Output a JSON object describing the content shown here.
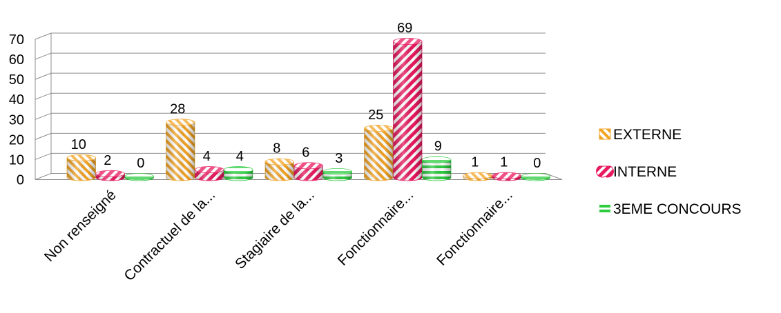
{
  "chart_data": {
    "type": "bar",
    "categories": [
      "Non renseigné",
      "Contractuel de la...",
      "Stagiaire de la...",
      "Fonctionnaire...",
      "Fonctionnaire..."
    ],
    "series": [
      {
        "name": "EXTERNE",
        "values": [
          10,
          28,
          8,
          25,
          1
        ],
        "color": "#f2a324",
        "pattern": "diagonal-stripes-up"
      },
      {
        "name": "INTERNE",
        "values": [
          2,
          4,
          6,
          69,
          1
        ],
        "color": "#e8195f",
        "pattern": "diagonal-stripes-down"
      },
      {
        "name": "3EME CONCOURS",
        "values": [
          0,
          4,
          3,
          9,
          0
        ],
        "color": "#2ecc40",
        "pattern": "horizontal-stripes"
      }
    ],
    "y_ticks": [
      "0",
      "10",
      "20",
      "30",
      "40",
      "50",
      "60",
      "70"
    ],
    "ylim": [
      0,
      70
    ],
    "grid": true,
    "legend_position": "right",
    "style": "3d-cylinder"
  }
}
